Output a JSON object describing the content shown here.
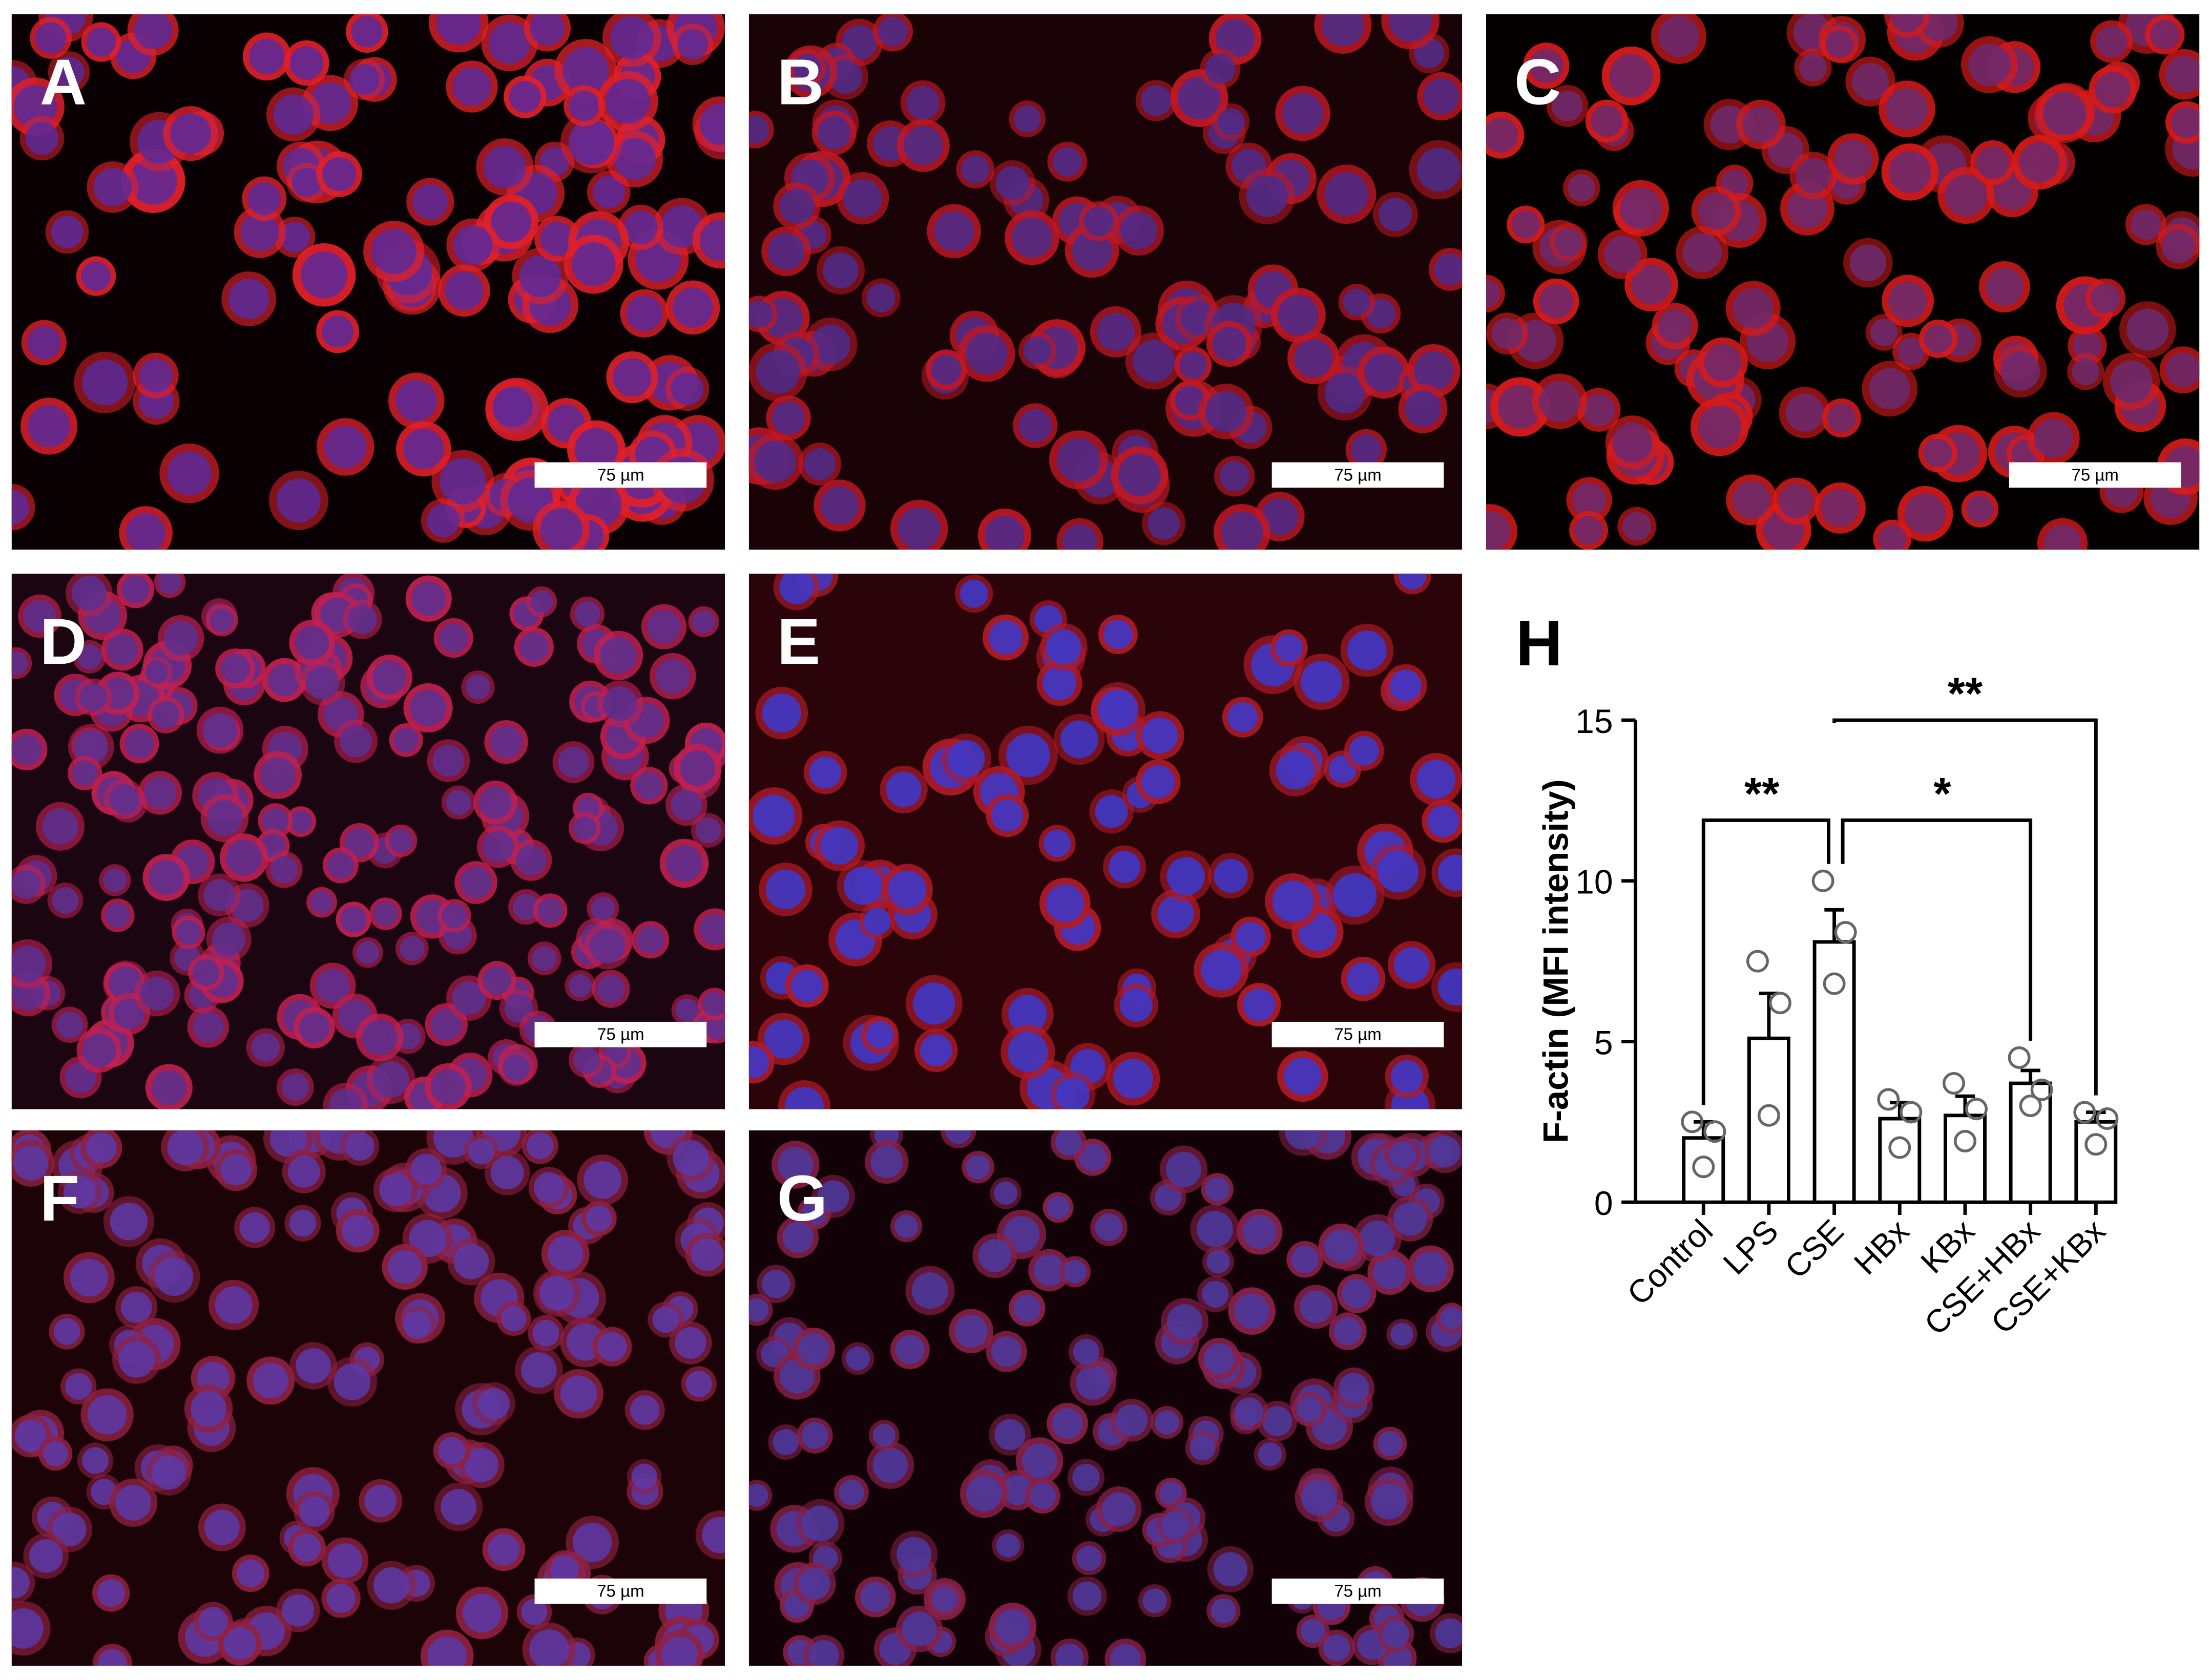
{
  "panels": [
    {
      "label": "A",
      "scale_bar": "75 µm"
    },
    {
      "label": "B",
      "scale_bar": "75 µm"
    },
    {
      "label": "C",
      "scale_bar": "75 µm"
    },
    {
      "label": "D",
      "scale_bar": "75 µm"
    },
    {
      "label": "E",
      "scale_bar": "75 µm"
    },
    {
      "label": "F",
      "scale_bar": "75 µm"
    },
    {
      "label": "G",
      "scale_bar": "75 µm"
    }
  ],
  "chart_data": {
    "type": "bar",
    "label": "H",
    "ylabel": "F-actin (MFI intensity)",
    "categories": [
      "Control",
      "LPS",
      "CSE",
      "HBx",
      "KBx",
      "CSE+HBx",
      "CSE+KBx"
    ],
    "values": [
      2.0,
      5.1,
      8.1,
      2.6,
      2.7,
      3.7,
      2.5
    ],
    "errors": [
      0.5,
      1.4,
      1.0,
      0.5,
      0.6,
      0.4,
      0.3
    ],
    "points": [
      [
        2.5,
        2.2,
        1.1
      ],
      [
        7.5,
        6.2,
        2.7
      ],
      [
        10.0,
        8.4,
        6.8
      ],
      [
        3.2,
        2.8,
        1.7
      ],
      [
        3.7,
        2.9,
        1.9
      ],
      [
        4.5,
        3.5,
        3.0
      ],
      [
        2.8,
        2.6,
        1.8
      ]
    ],
    "color": "#ffffff",
    "ylim": [
      0,
      15
    ],
    "yticks": [
      0,
      5,
      10,
      15
    ],
    "significance": [
      {
        "from": "Control",
        "to": "CSE",
        "label": "**"
      },
      {
        "from": "CSE",
        "to": "CSE+HBx",
        "label": "*"
      },
      {
        "from": "CSE",
        "to": "CSE+KBx",
        "label": "**"
      }
    ]
  }
}
